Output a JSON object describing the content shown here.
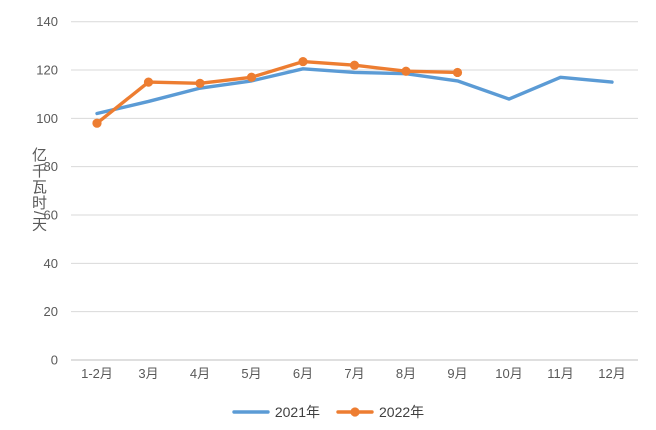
{
  "chart_data": {
    "type": "line",
    "title": "",
    "xlabel": "",
    "ylabel": "亿千瓦时/天",
    "categories": [
      "1-2月",
      "3月",
      "4月",
      "5月",
      "6月",
      "7月",
      "8月",
      "9月",
      "10月",
      "11月",
      "12月"
    ],
    "series": [
      {
        "name": "2021年",
        "color": "#5B9BD5",
        "marker": "none",
        "values": [
          102,
          107,
          112.5,
          115.5,
          120.5,
          119,
          118.5,
          115.5,
          108,
          117,
          115
        ]
      },
      {
        "name": "2022年",
        "color": "#ED7D31",
        "marker": "circle",
        "values": [
          98,
          115,
          114.5,
          117,
          123.5,
          122,
          119.5,
          119,
          null,
          null,
          null
        ]
      }
    ],
    "ylim": [
      0,
      140
    ],
    "ytick_step": 20,
    "grid": "horizontal",
    "legend_position": "bottom"
  },
  "style_colors": {
    "gridline": "#D9D9D9",
    "axis_line": "#BFBFBF",
    "tick_text": "#595959"
  }
}
